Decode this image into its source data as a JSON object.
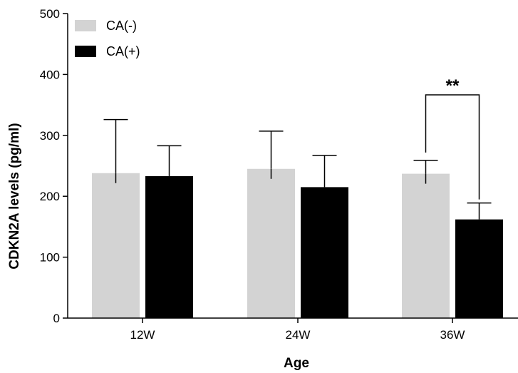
{
  "chart_data": {
    "type": "bar",
    "xlabel": "Age",
    "ylabel": "CDKN2A levels (pg/ml)",
    "ylim": [
      0,
      500
    ],
    "yticks": [
      0,
      100,
      200,
      300,
      400,
      500
    ],
    "categories": [
      "12W",
      "24W",
      "36W"
    ],
    "series": [
      {
        "name": "CA(-)",
        "color": "#d3d3d3",
        "values": [
          238,
          245,
          237
        ],
        "errors": [
          88,
          62,
          22
        ]
      },
      {
        "name": "CA(+)",
        "color": "#000000",
        "values": [
          233,
          215,
          162
        ],
        "errors": [
          50,
          52,
          27
        ]
      }
    ],
    "legend_position": "top-left",
    "annotations": [
      {
        "text": "**",
        "category": "36W",
        "between_series": [
          "CA(-)",
          "CA(+)"
        ]
      }
    ]
  }
}
